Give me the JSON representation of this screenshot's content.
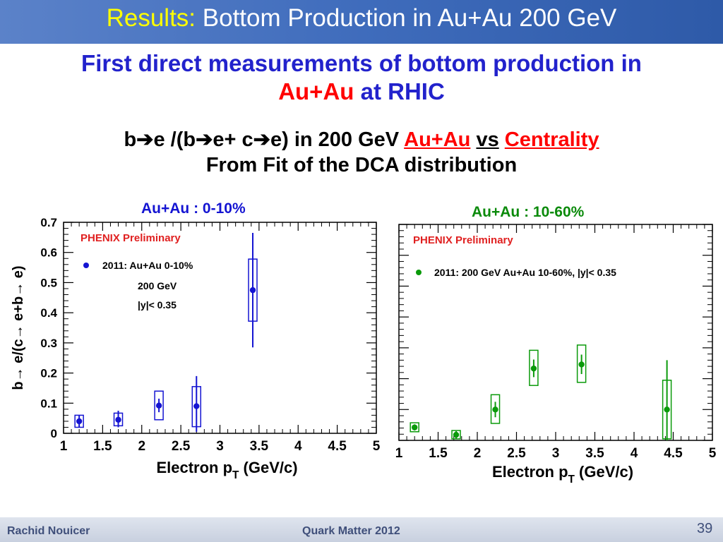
{
  "slide": {
    "title_prefix": "Results:",
    "title_rest": "Bottom Production in Au+Au 200 GeV",
    "headline_line1": "First direct measurements of bottom production in",
    "headline_red": "Au+Au",
    "headline_rest": "at RHIC",
    "sub_part1": "b",
    "sub_part2": "e /(b",
    "sub_part3": "e+ c",
    "sub_part4": "e) in 200 GeV",
    "sub_red1": "Au+Au",
    "sub_vs": "vs",
    "sub_red2": "Centrality",
    "sub_line2": "From Fit of the DCA distribution",
    "arrow": "➔"
  },
  "footer": {
    "author": "Rachid Nouicer",
    "conference": "Quark Matter 2012",
    "page": "39"
  },
  "colors": {
    "blue": "#1414d2",
    "green": "#0a9a0a",
    "title_yellow": "#ffff00",
    "headline_blue": "#2222cc",
    "red": "#ff0000"
  },
  "chart_data": [
    {
      "type": "scatter",
      "panel_title": "Au+Au : 0-10%",
      "stamp": "PHENIX Preliminary",
      "xlabel": "Electron p_T (GeV/c)",
      "ylabel": "b→ e/(c→ e+b→ e)",
      "xlim": [
        1,
        5
      ],
      "ylim": [
        0,
        0.7
      ],
      "x_ticks": [
        "1",
        "1.5",
        "2",
        "2.5",
        "3",
        "3.5",
        "4",
        "4.5",
        "5"
      ],
      "y_ticks": [
        "0",
        "0.1",
        "0.2",
        "0.3",
        "0.4",
        "0.5",
        "0.6",
        "0.7"
      ],
      "legend": {
        "series_label": "2011: Au+Au 0-10%",
        "line2": "200 GeV",
        "line3": "|y|< 0.35",
        "placement": "top-left"
      },
      "series": [
        {
          "name": "2011: Au+Au 0-10%",
          "x": [
            1.2,
            1.7,
            2.22,
            2.7,
            3.42
          ],
          "y": [
            0.04,
            0.045,
            0.092,
            0.09,
            0.475
          ],
          "stat_low": [
            0.02,
            0.02,
            0.07,
            0.005,
            0.285
          ],
          "stat_high": [
            0.06,
            0.075,
            0.115,
            0.19,
            0.665
          ],
          "sys_low": [
            0.02,
            0.025,
            0.045,
            0.022,
            0.372
          ],
          "sys_high": [
            0.06,
            0.067,
            0.14,
            0.155,
            0.578
          ]
        }
      ]
    },
    {
      "type": "scatter",
      "panel_title": "Au+Au : 10-60%",
      "stamp": "PHENIX Preliminary",
      "xlabel": "Electron p_T (GeV/c)",
      "ylabel": "",
      "xlim": [
        1,
        5
      ],
      "ylim": [
        0,
        0.7
      ],
      "x_ticks": [
        "1",
        "1.5",
        "2",
        "2.5",
        "3",
        "3.5",
        "4",
        "4.5",
        "5"
      ],
      "legend": {
        "series_label": "2011: 200 GeV Au+Au 10-60%, |y|< 0.35",
        "placement": "top-left"
      },
      "series": [
        {
          "name": "2011: 200 GeV Au+Au 10-60%, |y|< 0.35",
          "x": [
            1.2,
            1.73,
            2.23,
            2.72,
            3.33,
            4.42
          ],
          "y": [
            0.042,
            0.018,
            0.1,
            0.233,
            0.246,
            0.1
          ],
          "stat_low": [
            0.032,
            0.005,
            0.075,
            0.205,
            0.215,
            0.0
          ],
          "stat_high": [
            0.052,
            0.03,
            0.125,
            0.262,
            0.278,
            0.26
          ],
          "sys_low": [
            0.028,
            0.005,
            0.055,
            0.178,
            0.188,
            0.005
          ],
          "sys_high": [
            0.057,
            0.032,
            0.148,
            0.292,
            0.309,
            0.195
          ]
        }
      ]
    }
  ]
}
